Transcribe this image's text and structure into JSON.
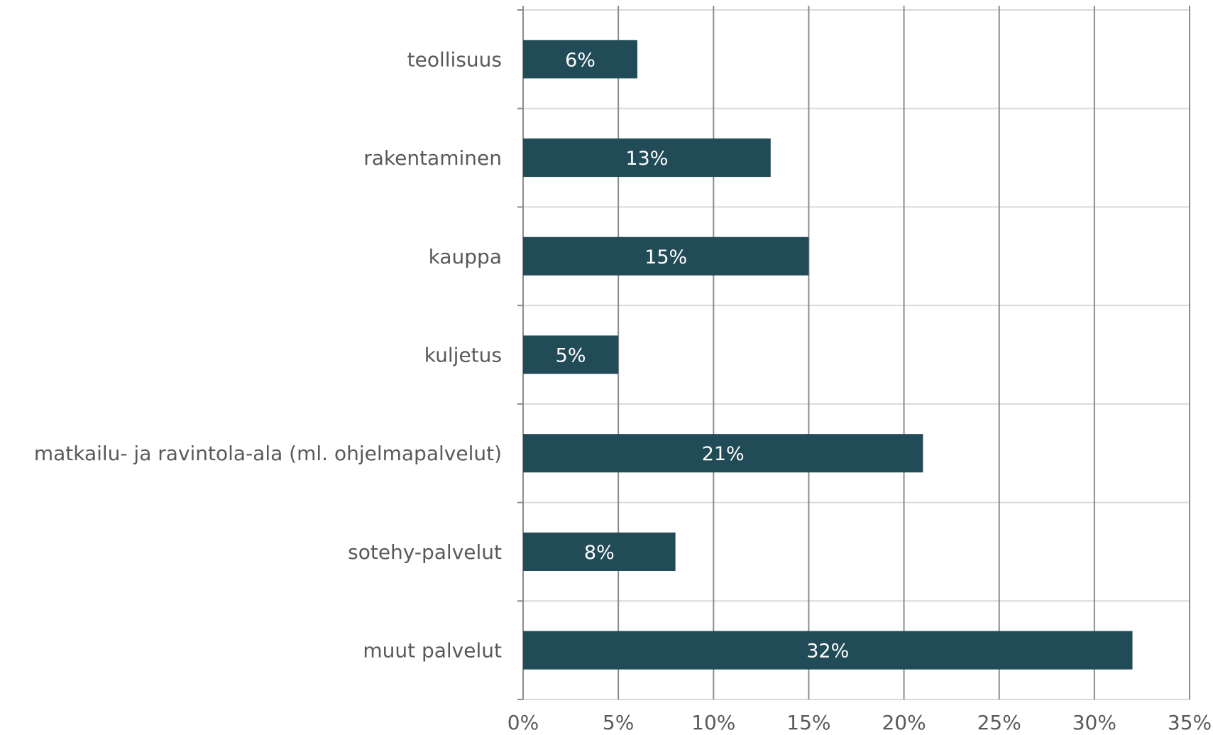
{
  "chart_data": {
    "type": "bar",
    "orientation": "horizontal",
    "categories": [
      "teollisuus",
      "rakentaminen",
      "kauppa",
      "kuljetus",
      "matkailu- ja ravintola-ala (ml. ohjelmapalvelut)",
      "sotehy-palvelut",
      "muut palvelut"
    ],
    "values": [
      6,
      13,
      15,
      5,
      21,
      8,
      32
    ],
    "data_labels": [
      "6%",
      "13%",
      "15%",
      "5%",
      "21%",
      "8%",
      "32%"
    ],
    "x_ticks": [
      "0%",
      "5%",
      "10%",
      "15%",
      "20%",
      "25%",
      "30%",
      "35%"
    ],
    "xlim": [
      0,
      35
    ],
    "title": "",
    "xlabel": "",
    "ylabel": "",
    "grid": true,
    "legend": "none",
    "colors": {
      "bar": "#224b58",
      "grid_vertical": "#8c8c8c",
      "grid_horizontal": "#d9d9d9",
      "label_text": "#595959",
      "data_label_text": "#ffffff"
    }
  }
}
